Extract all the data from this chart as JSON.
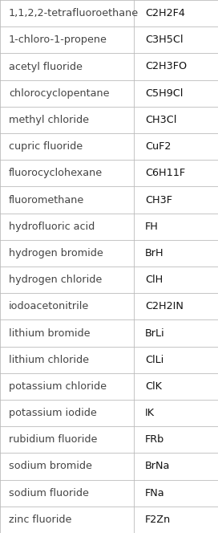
{
  "rows": [
    [
      "1,1,2,2-tetrafluoroethane",
      "C2H2F4"
    ],
    [
      "1-chloro-1-propene",
      "C3H5Cl"
    ],
    [
      "acetyl fluoride",
      "C2H3FO"
    ],
    [
      "chlorocyclopentane",
      "C5H9Cl"
    ],
    [
      "methyl chloride",
      "CH3Cl"
    ],
    [
      "cupric fluoride",
      "CuF2"
    ],
    [
      "fluorocyclohexane",
      "C6H11F"
    ],
    [
      "fluoromethane",
      "CH3F"
    ],
    [
      "hydrofluoric acid",
      "FH"
    ],
    [
      "hydrogen bromide",
      "BrH"
    ],
    [
      "hydrogen chloride",
      "ClH"
    ],
    [
      "iodoacetonitrile",
      "C2H2IN"
    ],
    [
      "lithium bromide",
      "BrLi"
    ],
    [
      "lithium chloride",
      "ClLi"
    ],
    [
      "potassium chloride",
      "ClK"
    ],
    [
      "potassium iodide",
      "IK"
    ],
    [
      "rubidium fluoride",
      "FRb"
    ],
    [
      "sodium bromide",
      "BrNa"
    ],
    [
      "sodium fluoride",
      "FNa"
    ],
    [
      "zinc fluoride",
      "F2Zn"
    ]
  ],
  "col_split": 0.615,
  "bg_color": "#ffffff",
  "border_color": "#bbbbbb",
  "text_color_left": "#444444",
  "text_color_right": "#111111",
  "font_size": 9.2,
  "row_bg": "#ffffff",
  "fig_width": 2.72,
  "fig_height": 6.64,
  "dpi": 100
}
